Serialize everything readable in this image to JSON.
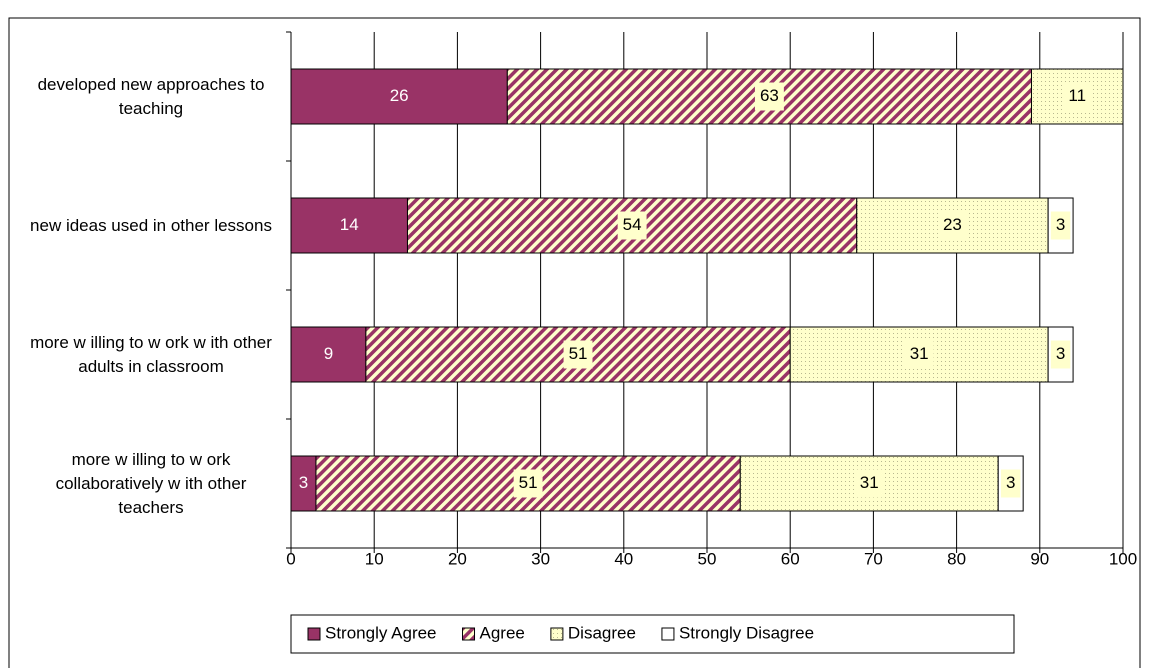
{
  "chart_data": {
    "type": "stacked-barh",
    "categories": [
      "developed new approaches to teaching",
      "new ideas used in other lessons",
      "more w illing to w ork w ith other adults in classroom",
      "more w illing to w ork collaboratively w ith other teachers"
    ],
    "series": [
      {
        "name": "Strongly Agree",
        "color": "#993366",
        "values": [
          26,
          14,
          9,
          3
        ]
      },
      {
        "name": "Agree",
        "color": "#993366",
        "values": [
          63,
          54,
          51,
          51
        ]
      },
      {
        "name": "Disagree",
        "color": "#ffffcc",
        "values": [
          11,
          23,
          31,
          31
        ]
      },
      {
        "name": "Strongly Disagree",
        "color": "#ffffff",
        "values": [
          null,
          3,
          3,
          3
        ]
      }
    ],
    "xlim": [
      0,
      100
    ],
    "xticks": [
      0,
      10,
      20,
      30,
      40,
      50,
      60,
      70,
      80,
      90,
      100
    ],
    "grid": true,
    "legend": "bottom"
  }
}
